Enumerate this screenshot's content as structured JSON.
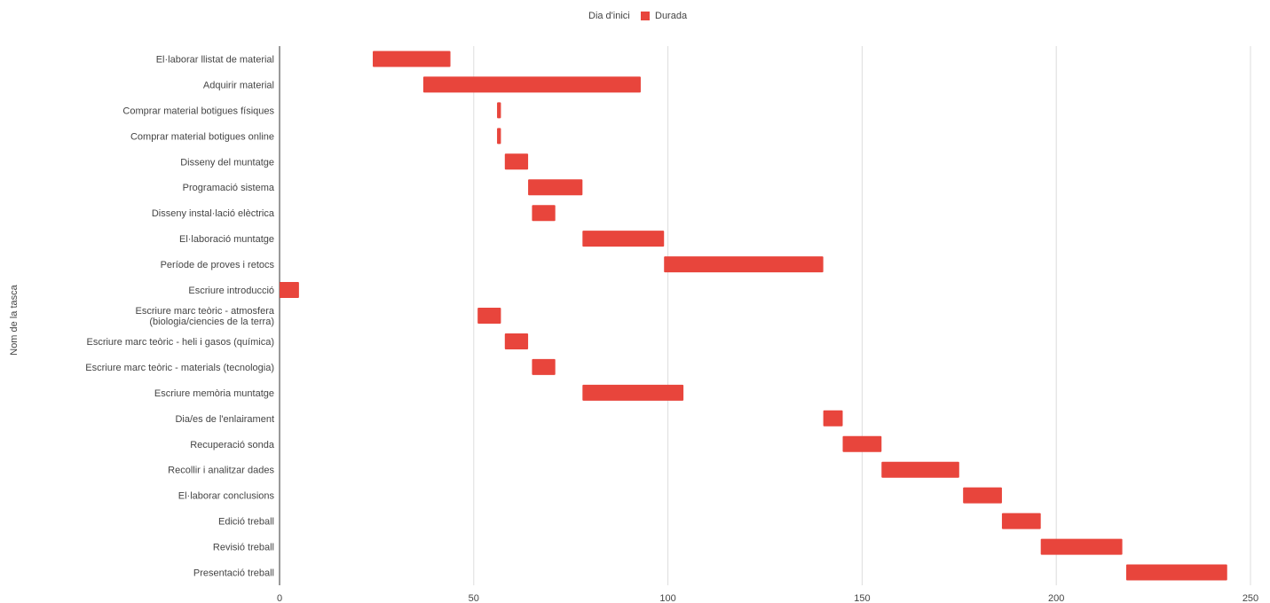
{
  "chart_data": {
    "type": "bar",
    "orientation": "horizontal",
    "stacked": true,
    "ylabel": "Nom de la tasca",
    "xlim": [
      0,
      250
    ],
    "x_ticks": [
      0,
      50,
      100,
      150,
      200,
      250
    ],
    "grid": true,
    "legend_position": "top",
    "categories": [
      "El·laborar llistat de material",
      "Adquirir material",
      "Comprar material botigues físiques",
      "Comprar material botigues online",
      "Disseny del muntatge",
      "Programació sistema",
      "Disseny instal·lació elèctrica",
      "El·laboració muntatge",
      "Període de proves i retocs",
      "Escriure introducció",
      "Escriure marc teòric - atmosfera (biologia/ciencies de la terra)",
      "Escriure marc teòric - heli i gasos (química)",
      "Escriure marc teòric - materials (tecnologia)",
      "Escriure memòria muntatge",
      "Dia/es de l'enlairament",
      "Recuperació sonda",
      "Recollir i analitzar dades",
      "El·laborar conclusions",
      "Edició treball",
      "Revisió treball",
      "Presentació treball"
    ],
    "series": [
      {
        "name": "Dia d'inici",
        "color": "transparent",
        "values": [
          24,
          37,
          56,
          56,
          58,
          64,
          65,
          78,
          99,
          0,
          51,
          58,
          65,
          78,
          140,
          145,
          155,
          176,
          186,
          196,
          218
        ]
      },
      {
        "name": "Durada",
        "color": "#e8453c",
        "values": [
          20,
          56,
          1,
          1,
          6,
          14,
          6,
          21,
          41,
          5,
          6,
          6,
          6,
          26,
          5,
          10,
          20,
          10,
          10,
          21,
          26
        ]
      }
    ]
  }
}
